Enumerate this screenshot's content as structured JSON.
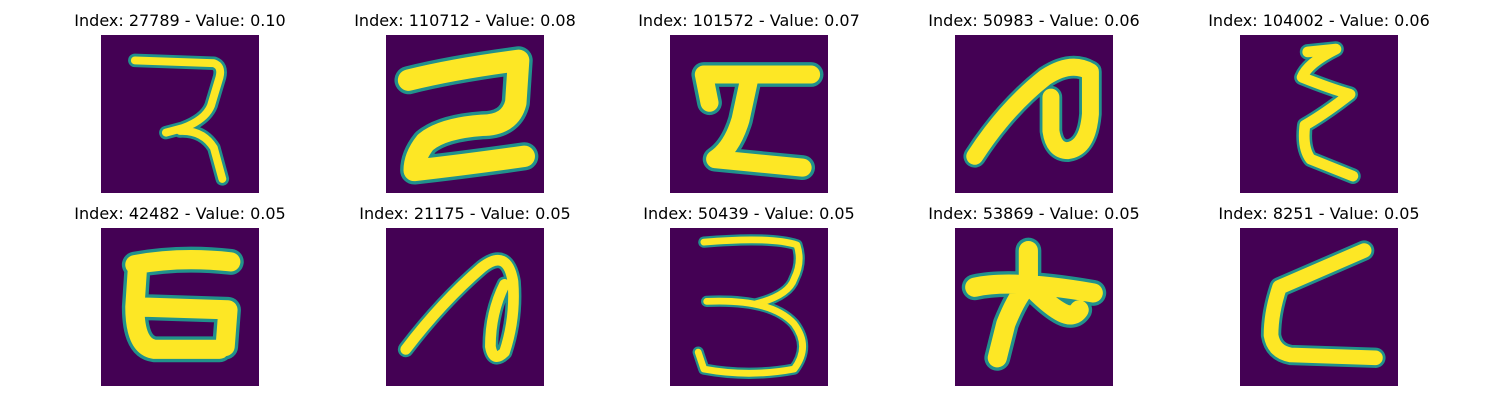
{
  "figure": {
    "panels": [
      {
        "title": "Index: 27789 - Value: 0.10",
        "glyph": "strokes-a"
      },
      {
        "title": "Index: 110712 - Value: 0.08",
        "glyph": "strokes-b"
      },
      {
        "title": "Index: 101572 - Value: 0.07",
        "glyph": "strokes-c"
      },
      {
        "title": "Index: 50983 - Value: 0.06",
        "glyph": "strokes-d"
      },
      {
        "title": "Index: 104002 - Value: 0.06",
        "glyph": "strokes-e"
      },
      {
        "title": "Index: 42482 - Value: 0.05",
        "glyph": "strokes-f"
      },
      {
        "title": "Index: 21175 - Value: 0.05",
        "glyph": "strokes-g"
      },
      {
        "title": "Index: 50439 - Value: 0.05",
        "glyph": "strokes-h"
      },
      {
        "title": "Index: 53869 - Value: 0.05",
        "glyph": "strokes-i"
      },
      {
        "title": "Index: 8251 - Value: 0.05",
        "glyph": "strokes-j"
      }
    ],
    "colors": {
      "background": "#440154",
      "stroke": "#fde725",
      "edge": "#21918c"
    }
  }
}
